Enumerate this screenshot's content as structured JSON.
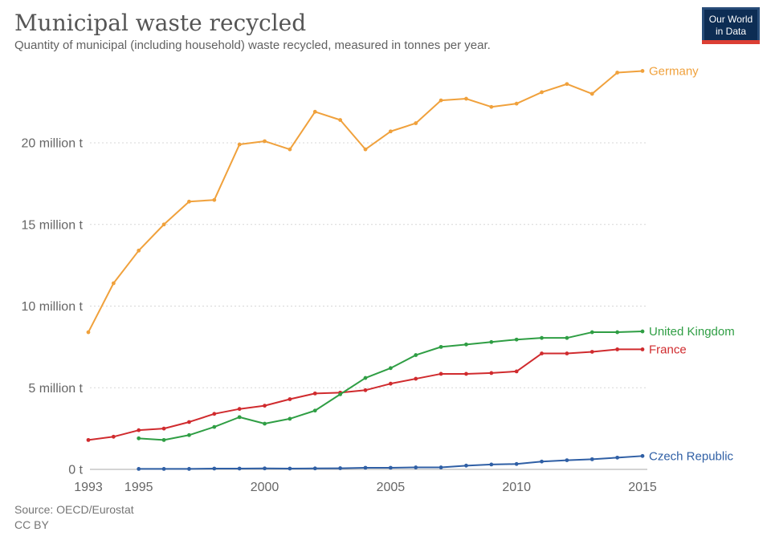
{
  "header": {
    "title": "Municipal waste recycled",
    "subtitle": "Quantity of municipal (including household) waste recycled, measured in tonnes per year.",
    "logo": {
      "line1": "Our World",
      "line2": "in Data"
    }
  },
  "footer": {
    "source": "Source: OECD/Eurostat",
    "license": "CC BY"
  },
  "colors": {
    "germany": "#f0a13c",
    "united_kingdom": "#2f9e44",
    "france": "#d02b2e",
    "czech_republic": "#2f5fa5",
    "logo_bg": "#0d2d54",
    "logo_border": "#284c78",
    "logo_bar": "#dc3f34"
  },
  "chart_data": {
    "type": "line",
    "title": "Municipal waste recycled",
    "subtitle": "Quantity of municipal (including household) waste recycled, measured in tonnes per year.",
    "xlabel": "",
    "ylabel": "",
    "unit": "million tonnes per year",
    "grid": true,
    "legend_position": "right-end-labels",
    "x_range": [
      1993,
      2015
    ],
    "y_range": [
      0,
      24.6
    ],
    "x_ticks": [
      1993,
      1995,
      2000,
      2005,
      2010,
      2015
    ],
    "y_ticks": [
      {
        "value": 0,
        "label": "0 t"
      },
      {
        "value": 5,
        "label": "5 million t"
      },
      {
        "value": 10,
        "label": "10 million t"
      },
      {
        "value": 15,
        "label": "15 million t"
      },
      {
        "value": 20,
        "label": "20 million t"
      }
    ],
    "series": [
      {
        "name": "Germany",
        "color": "#f0a13c",
        "start_year": 1993,
        "values": [
          8.4,
          11.4,
          13.4,
          15.0,
          16.4,
          16.5,
          19.9,
          20.1,
          19.6,
          21.9,
          21.4,
          19.6,
          20.7,
          21.2,
          22.6,
          22.7,
          22.2,
          22.4,
          23.1,
          23.6,
          23.0,
          24.3,
          24.4
        ]
      },
      {
        "name": "France",
        "color": "#d02b2e",
        "start_year": 1993,
        "values": [
          1.8,
          2.0,
          2.4,
          2.5,
          2.9,
          3.4,
          3.7,
          3.9,
          4.3,
          4.65,
          4.7,
          4.85,
          5.25,
          5.55,
          5.85,
          5.85,
          5.9,
          6.0,
          7.1,
          7.1,
          7.2,
          7.35,
          7.35
        ]
      },
      {
        "name": "United Kingdom",
        "color": "#2f9e44",
        "start_year": 1995,
        "values": [
          1.9,
          1.8,
          2.1,
          2.6,
          3.2,
          2.8,
          3.1,
          3.6,
          4.6,
          5.6,
          6.2,
          7.0,
          7.5,
          7.65,
          7.8,
          7.95,
          8.05,
          8.05,
          8.4,
          8.4,
          8.45
        ]
      },
      {
        "name": "Czech Republic",
        "color": "#2f5fa5",
        "start_year": 1995,
        "values": [
          0.03,
          0.03,
          0.03,
          0.05,
          0.05,
          0.06,
          0.05,
          0.06,
          0.07,
          0.1,
          0.1,
          0.12,
          0.12,
          0.23,
          0.3,
          0.33,
          0.48,
          0.56,
          0.62,
          0.72,
          0.82
        ]
      }
    ]
  }
}
